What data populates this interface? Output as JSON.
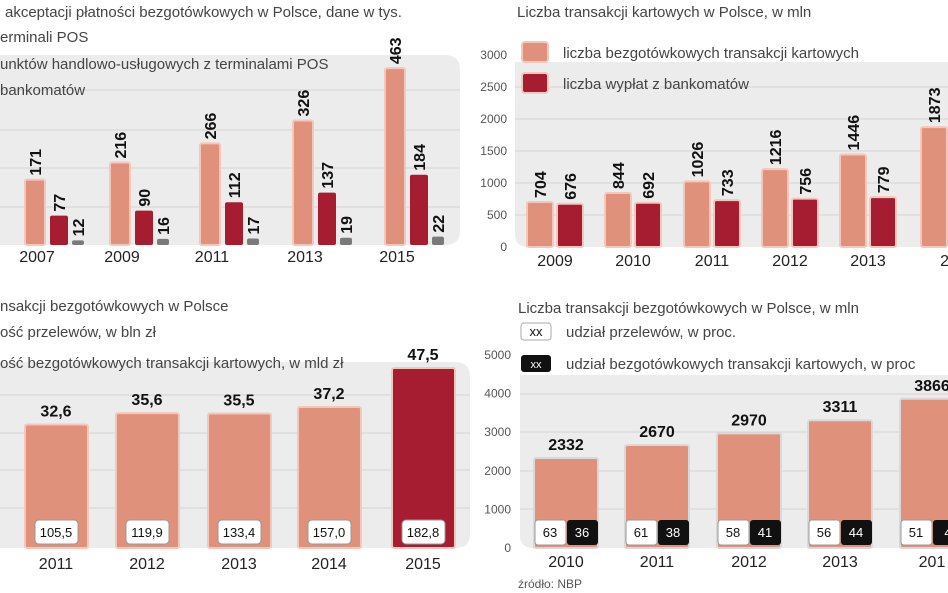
{
  "colors": {
    "light": "#e0917b",
    "dark": "#a61d31",
    "gray": "#7a7a7a",
    "panel": "#ececec",
    "grid": "#d3d3d3",
    "box_dark": "#111111"
  },
  "source": "źródło: NBP",
  "chart_data": [
    {
      "type": "bar",
      "title": "akceptacji płatności bezgotówkowych w Polsce, dane w tys.",
      "legend": [
        "erminali POS",
        "unktów handlowo-usługowych z terminalami POS",
        "bankomatów"
      ],
      "categories": [
        "2007",
        "2009",
        "2011",
        "2013",
        "2015"
      ],
      "series": [
        {
          "name": "erminali POS",
          "color": "light",
          "values": [
            171,
            216,
            266,
            326,
            463
          ]
        },
        {
          "name": "unktów handlowo-usługowych z terminalami POS",
          "color": "dark",
          "values": [
            77,
            90,
            112,
            137,
            184
          ]
        },
        {
          "name": "bankomatów",
          "color": "gray",
          "values": [
            12,
            16,
            17,
            19,
            22
          ]
        }
      ],
      "grid": true
    },
    {
      "type": "bar",
      "title": "Liczba transakcji kartowych w Polsce, w mln",
      "legend": [
        "liczba bezgotówkowych transakcji kartowych",
        "liczba wypłat z bankomatów"
      ],
      "categories": [
        "2009",
        "2010",
        "2011",
        "2012",
        "2013",
        "20"
      ],
      "series": [
        {
          "name": "liczba bezgotówkowych transakcji kartowych",
          "color": "light",
          "values": [
            704,
            844,
            1026,
            1216,
            1446,
            1873
          ]
        },
        {
          "name": "liczba wypłat z bankomatów",
          "color": "dark",
          "values": [
            676,
            692,
            733,
            756,
            779,
            null
          ]
        }
      ],
      "yticks": [
        "0",
        "500",
        "1000",
        "1500",
        "2000",
        "2500",
        "3000"
      ],
      "ylim": [
        0,
        3000
      ],
      "grid": true
    },
    {
      "type": "bar",
      "title": "nsakcji bezgotówkowych w Polsce",
      "legend": [
        "ość przelewów, w bln zł",
        "ość bezgotówkowych transakcji kartowych, w mld zł"
      ],
      "categories": [
        "2011",
        "2012",
        "2013",
        "2014",
        "2015"
      ],
      "values": [
        32.6,
        35.6,
        35.5,
        37.2,
        47.5
      ],
      "value_labels": [
        "32,6",
        "35,6",
        "35,5",
        "37,2",
        "47,5"
      ],
      "box_values": [
        "105,5",
        "119,9",
        "133,4",
        "157,0",
        "182,8"
      ],
      "highlight_last": true,
      "grid": true
    },
    {
      "type": "bar",
      "title": "Liczba transakcji bezgotówkowych w Polsce, w mln",
      "legend": [
        {
          "box": "xx",
          "label": "udział przelewów, w proc."
        },
        {
          "box": "xx",
          "label": "udział bezgotówkowych transakcji kartowych, w proc"
        }
      ],
      "categories": [
        "2010",
        "2011",
        "2012",
        "2013",
        "201"
      ],
      "values": [
        2332,
        2670,
        2970,
        3311,
        3866
      ],
      "value_labels": [
        "2332",
        "2670",
        "2970",
        "3311",
        "3866"
      ],
      "share_transfers": [
        "63",
        "61",
        "58",
        "56",
        "51"
      ],
      "share_cards": [
        "36",
        "38",
        "41",
        "44",
        "4"
      ],
      "yticks": [
        "0",
        "1000",
        "2000",
        "3000",
        "4000",
        "5000"
      ],
      "ylim": [
        0,
        5000
      ],
      "grid": true
    }
  ]
}
